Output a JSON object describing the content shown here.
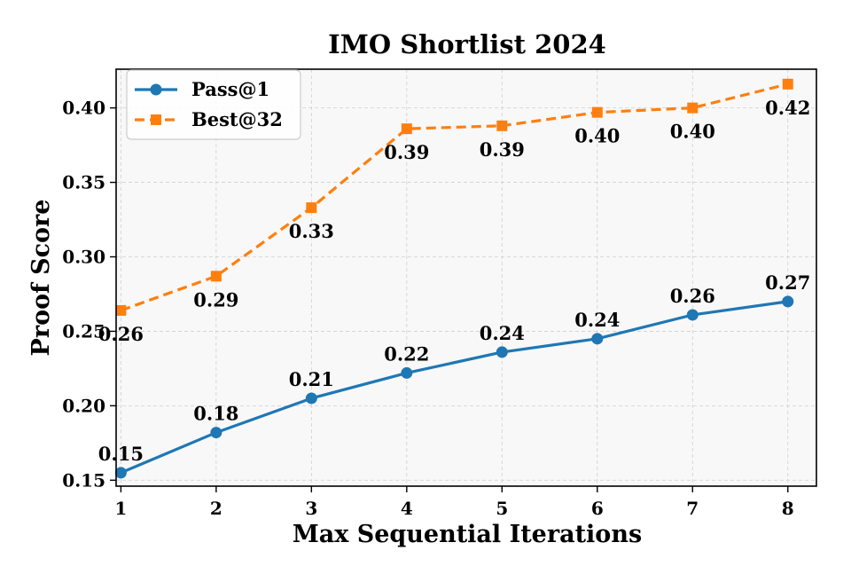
{
  "chart_data": {
    "type": "line",
    "title": "IMO Shortlist 2024",
    "xlabel": "Max Sequential Iterations",
    "ylabel": "Proof Score",
    "x": [
      1,
      2,
      3,
      4,
      5,
      6,
      7,
      8
    ],
    "xlim": [
      0.95,
      8.3
    ],
    "ylim": [
      0.146,
      0.426
    ],
    "yticks": [
      0.15,
      0.2,
      0.25,
      0.3,
      0.35,
      0.4
    ],
    "ytick_labels": [
      "0.15",
      "0.20",
      "0.25",
      "0.30",
      "0.35",
      "0.40"
    ],
    "xtick_labels": [
      "1",
      "2",
      "3",
      "4",
      "5",
      "6",
      "7",
      "8"
    ],
    "grid": true,
    "legend_position": "top-left",
    "series": [
      {
        "name": "Pass@1",
        "color": "#1f77b4",
        "marker": "circle",
        "linestyle": "solid",
        "values": [
          0.155,
          0.182,
          0.205,
          0.222,
          0.236,
          0.245,
          0.261,
          0.27
        ],
        "labels": [
          "0.15",
          "0.18",
          "0.21",
          "0.22",
          "0.24",
          "0.24",
          "0.26",
          "0.27"
        ],
        "label_position": "above"
      },
      {
        "name": "Best@32",
        "color": "#ff7f0e",
        "marker": "square",
        "linestyle": "dashed",
        "values": [
          0.264,
          0.287,
          0.333,
          0.386,
          0.388,
          0.397,
          0.4,
          0.416
        ],
        "labels": [
          "0.26",
          "0.29",
          "0.33",
          "0.39",
          "0.39",
          "0.40",
          "0.40",
          "0.42"
        ],
        "label_position": "below"
      }
    ]
  }
}
